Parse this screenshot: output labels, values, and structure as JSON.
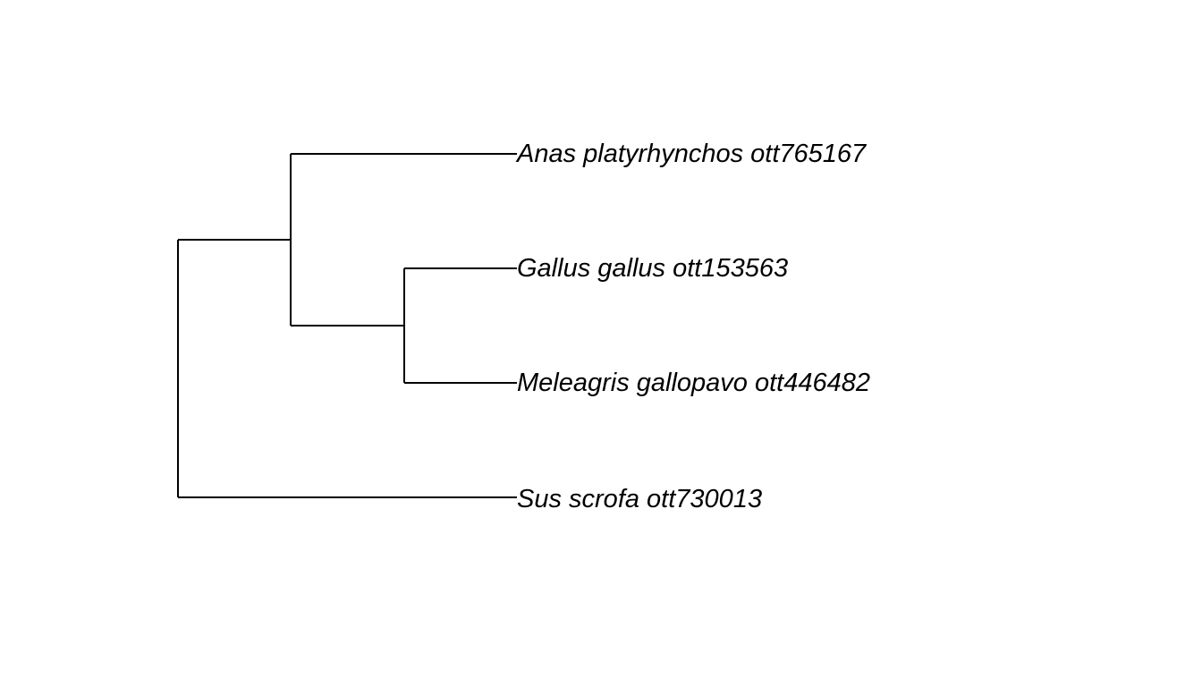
{
  "tree": {
    "newick": "((Anas platyrhynchos ott765167,(Gallus gallus ott153563,Meleagris gallopavo ott446482)),Sus scrofa ott730013);",
    "tips": [
      {
        "label": "Anas platyrhynchos ott765167"
      },
      {
        "label": "Gallus gallus ott153563"
      },
      {
        "label": "Meleagris gallopavo ott446482"
      },
      {
        "label": "Sus scrofa ott730013"
      }
    ],
    "topology": {
      "children": [
        {
          "children": [
            {
              "tip": 0
            },
            {
              "children": [
                {
                  "tip": 1
                },
                {
                  "tip": 2
                }
              ]
            }
          ]
        },
        {
          "tip": 3
        }
      ]
    },
    "line_color": "#000000",
    "label_color": "#000000"
  }
}
